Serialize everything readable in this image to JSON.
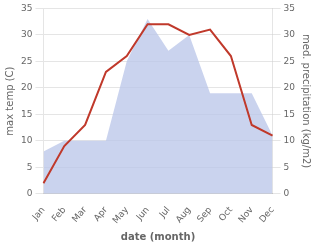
{
  "chart_data": {
    "type": "line",
    "categories": [
      "Jan",
      "Feb",
      "Mar",
      "Apr",
      "May",
      "Jun",
      "Jul",
      "Aug",
      "Sep",
      "Oct",
      "Nov",
      "Dec"
    ],
    "xlabel": "date (month)",
    "ylabel": "max temp (C)",
    "y2label": "med. precipitation (kg/m2)",
    "series": [
      {
        "type": "area",
        "color": "#b8c4e8",
        "axis": "y2",
        "values": [
          8,
          10,
          10,
          10,
          25,
          33,
          27,
          30,
          19,
          19,
          19,
          11
        ]
      },
      {
        "type": "line",
        "color": "#c0392b",
        "values": [
          2,
          9,
          13,
          23,
          26,
          32,
          32,
          30,
          31,
          26,
          13,
          11
        ]
      }
    ],
    "ylim": [
      0,
      35
    ],
    "yticks": [
      0,
      5,
      10,
      15,
      20,
      25,
      30,
      35
    ],
    "y2lim": [
      0,
      35
    ],
    "y2ticks": [
      0,
      5,
      10,
      15,
      20,
      25,
      30,
      35
    ],
    "grid": true
  }
}
